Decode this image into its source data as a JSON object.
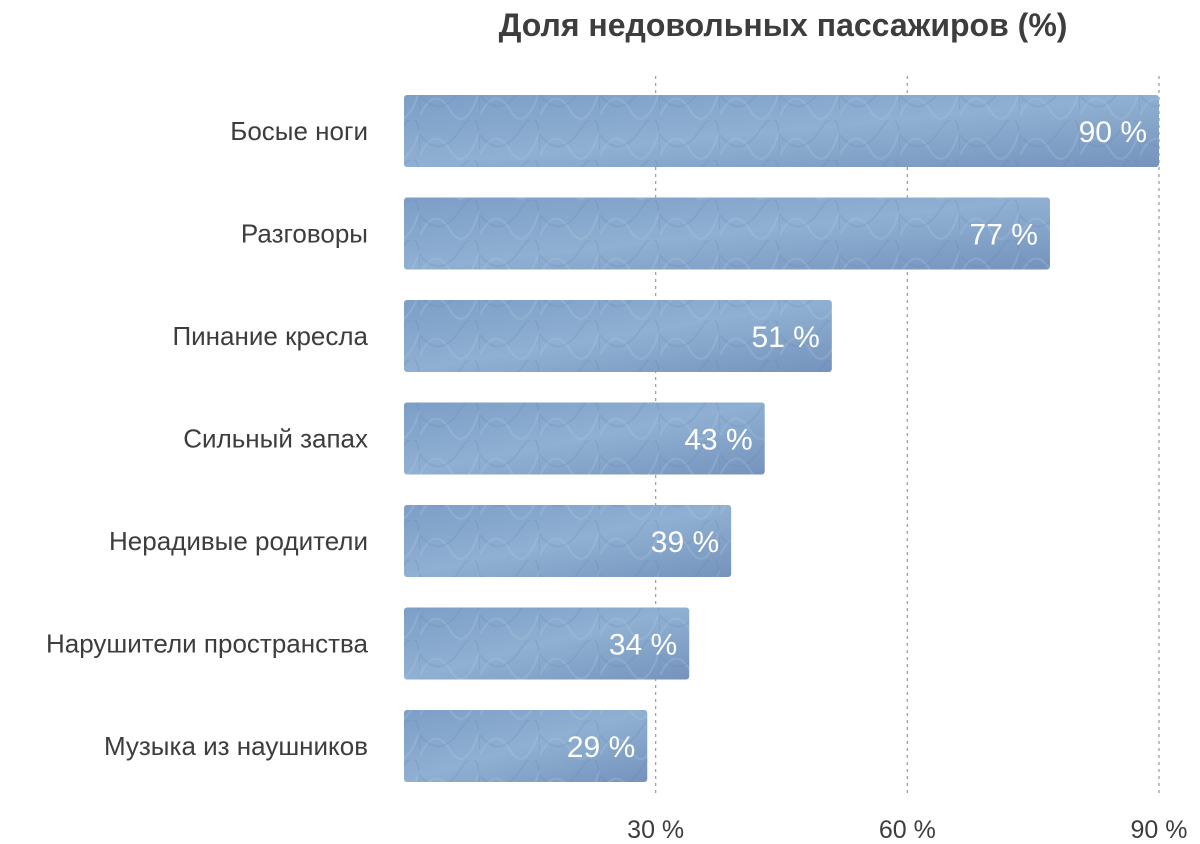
{
  "chart_data": {
    "type": "bar",
    "orientation": "horizontal",
    "title": "Доля недовольных пассажиров (%)",
    "categories": [
      "Босые ноги",
      "Разговоры",
      "Пинание кресла",
      "Сильный запах",
      "Нерадивые родители",
      "Нарушители пространства",
      "Музыка из наушников"
    ],
    "values": [
      90,
      77,
      51,
      43,
      39,
      34,
      29
    ],
    "value_labels": [
      "90 %",
      "77 %",
      "51 %",
      "43 %",
      "39 %",
      "34 %",
      "29 %"
    ],
    "xlim": [
      0,
      90
    ],
    "xticks": [
      30,
      60,
      90
    ],
    "xtick_labels": [
      "30 %",
      "60 %",
      "90 %"
    ],
    "xlabel": "",
    "ylabel": "",
    "grid": "vertical-dashed",
    "legend": "none",
    "colors": {
      "bar": "#7d9ec7",
      "bar_light": "#9dbad9",
      "bar_dark": "#6b89b3",
      "value_text": "#ffffff",
      "text": "#3d3d3d",
      "grid": "#9a9a9a"
    }
  }
}
